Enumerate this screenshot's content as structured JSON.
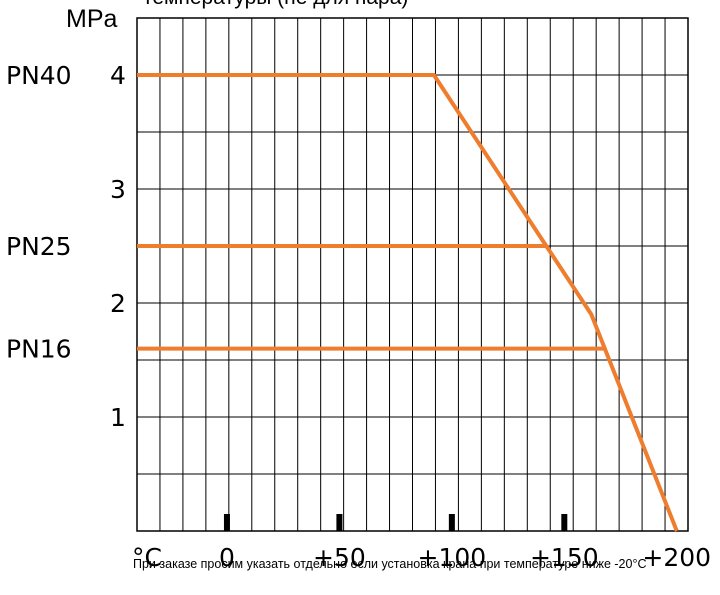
{
  "chart_data": {
    "type": "line",
    "title": "температуры (не для пара)",
    "ylabel": "MPa",
    "xlabel": "°C",
    "xlim": [
      -40,
      205
    ],
    "ylim": [
      0,
      4.5
    ],
    "x_ticks": [
      {
        "value": 0,
        "label": "0"
      },
      {
        "value": 50,
        "label": "+50"
      },
      {
        "value": 100,
        "label": "+100"
      },
      {
        "value": 150,
        "label": "+150"
      },
      {
        "value": 200,
        "label": "+200"
      }
    ],
    "y_ticks": [
      {
        "value": 1,
        "label": "1"
      },
      {
        "value": 2,
        "label": "2"
      },
      {
        "value": 3,
        "label": "3"
      },
      {
        "value": 4,
        "label": "4"
      }
    ],
    "grid": true,
    "line_color": "#ef7d2e",
    "pressure_classes": [
      {
        "label": "PN40",
        "value": 4.0
      },
      {
        "label": "PN25",
        "value": 2.5
      },
      {
        "label": "PN16",
        "value": 1.6
      }
    ],
    "series": [
      {
        "values": [
          [
            -40,
            4.0
          ],
          [
            92,
            4.0
          ],
          [
            142,
            2.5
          ],
          [
            162,
            1.9
          ],
          [
            200,
            0.0
          ]
        ]
      },
      {
        "values": [
          [
            -40,
            2.5
          ],
          [
            142,
            2.5
          ]
        ]
      },
      {
        "values": [
          [
            -40,
            1.6
          ],
          [
            168,
            1.6
          ]
        ]
      }
    ]
  },
  "note": "При заказе просим указать отдельно если установка крана при температуре ниже -20°C"
}
